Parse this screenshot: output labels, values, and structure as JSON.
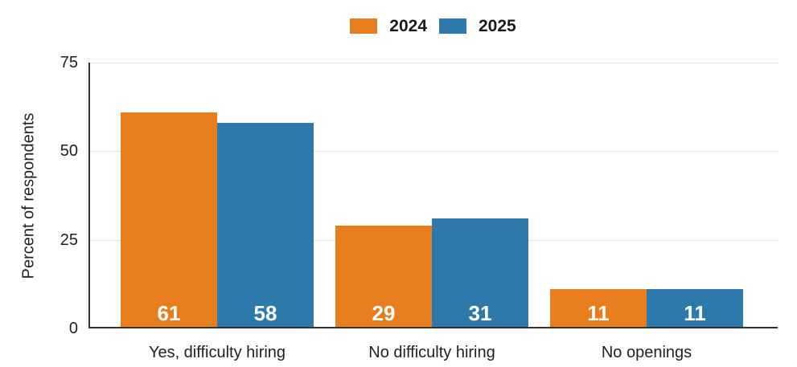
{
  "chart_data": {
    "type": "bar",
    "categories": [
      "Yes, difficulty hiring",
      "No difficulty hiring",
      "No openings"
    ],
    "series": [
      {
        "name": "2024",
        "color": "#E87D1E",
        "values": [
          61,
          29,
          11
        ]
      },
      {
        "name": "2025",
        "color": "#2E79AB",
        "values": [
          58,
          31,
          11
        ]
      }
    ],
    "ylabel": "Percent of respondents",
    "ylim": [
      0,
      75
    ],
    "yticks": [
      0,
      25,
      50,
      75
    ],
    "grid": true,
    "legend_position": "top-center",
    "value_labels": "inside bar bottom, white bold"
  },
  "colors": {
    "background": "#ffffff",
    "gridline": "#e2e2e2",
    "axis_line": "#333333",
    "text": "#212121",
    "value_label_text": "#ffffff",
    "series_2024": "#E87D1E",
    "series_2025": "#2E79AB"
  }
}
